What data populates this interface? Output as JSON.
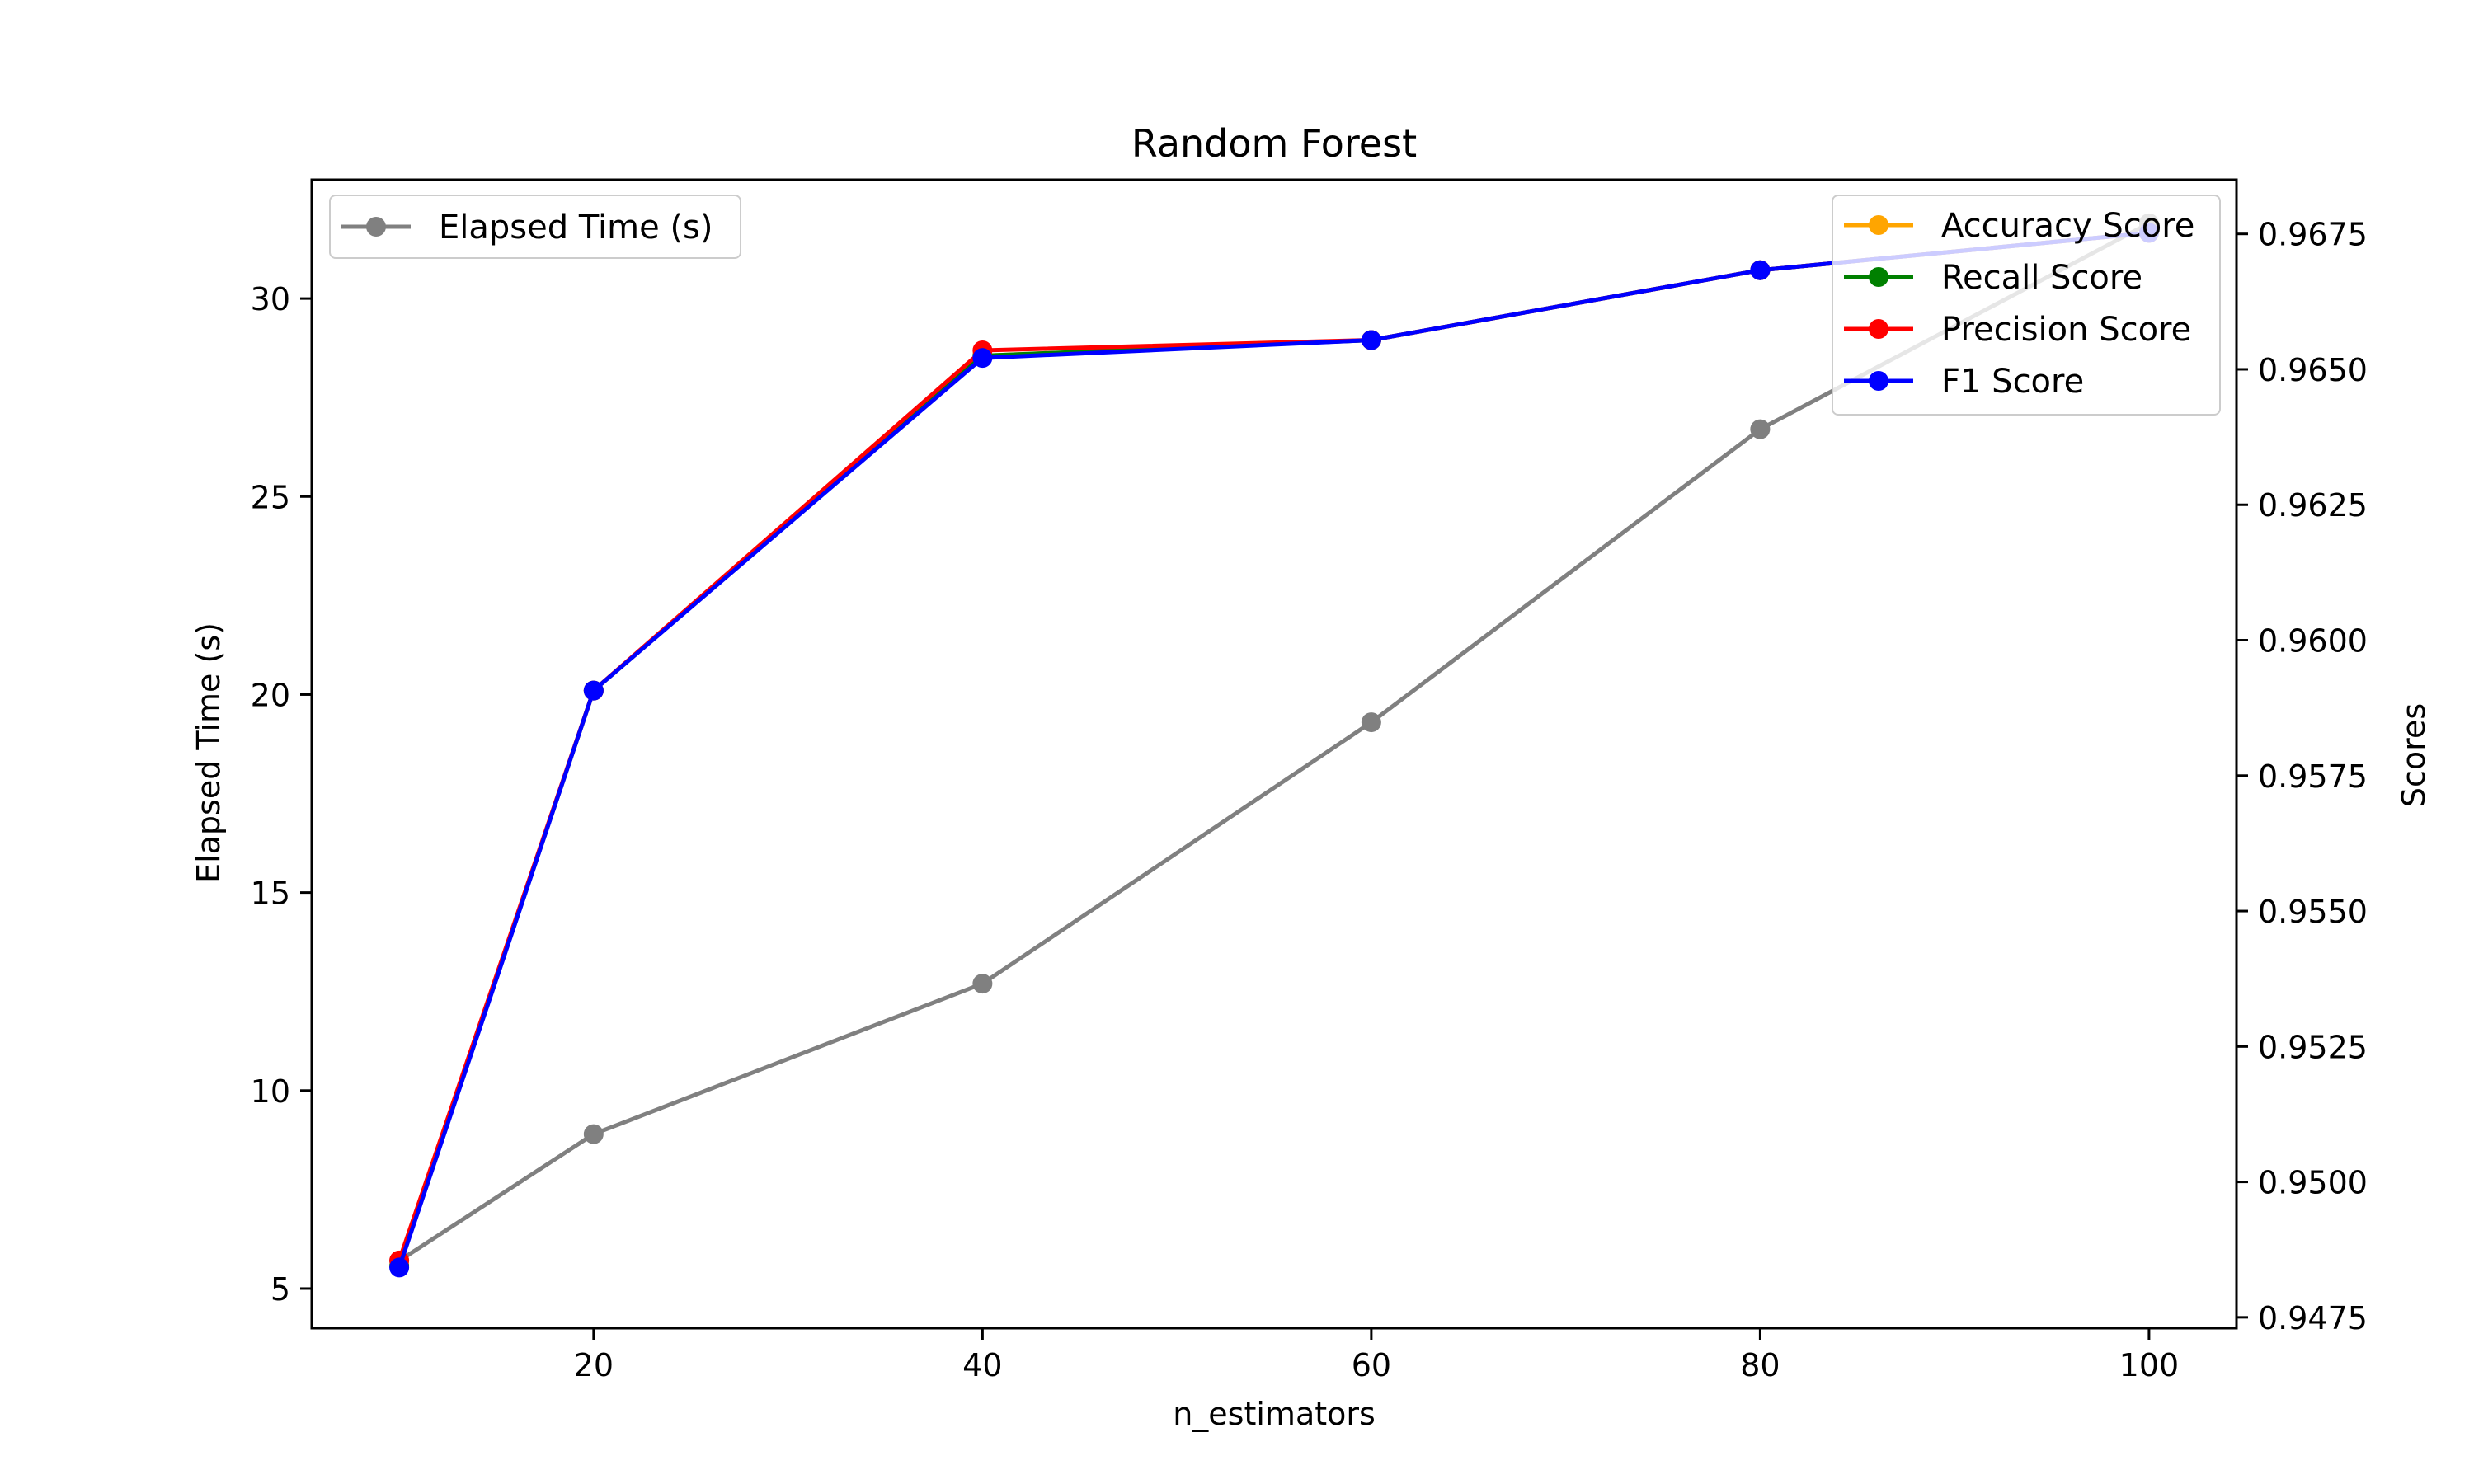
{
  "chart_data": {
    "type": "line",
    "title": "Random Forest",
    "xlabel": "n_estimators",
    "ylabel_left": "Elapsed Time (s)",
    "ylabel_right": "Scores",
    "x": [
      10,
      20,
      40,
      60,
      80,
      100
    ],
    "xlim": [
      5.5,
      104.5
    ],
    "x_ticks": [
      20,
      40,
      60,
      80,
      100
    ],
    "ylim_left": [
      4.0,
      33.0
    ],
    "y_ticks_left": [
      5,
      10,
      15,
      20,
      25,
      30
    ],
    "ylim_right": [
      0.9473,
      0.9685
    ],
    "y_ticks_right": [
      0.9475,
      0.95,
      0.9525,
      0.955,
      0.9575,
      0.96,
      0.9625,
      0.965,
      0.9675
    ],
    "y_tick_labels_right": [
      "0.9475",
      "0.9500",
      "0.9525",
      "0.9550",
      "0.9575",
      "0.9600",
      "0.9625",
      "0.9650",
      "0.9675"
    ],
    "left_series": [
      {
        "name": "Elapsed Time (s)",
        "color": "#808080",
        "values": [
          5.7,
          8.9,
          12.7,
          19.3,
          26.7,
          31.9
        ]
      }
    ],
    "right_series": [
      {
        "name": "Accuracy Score",
        "color": "#FFA500",
        "values": [
          0.94845,
          0.95907,
          0.96525,
          0.96554,
          0.96683,
          0.96752
        ]
      },
      {
        "name": "Recall Score",
        "color": "#008000",
        "values": [
          0.94845,
          0.95907,
          0.96525,
          0.96554,
          0.96683,
          0.96752
        ]
      },
      {
        "name": "Precision Score",
        "color": "#FF0000",
        "values": [
          0.94855,
          0.95907,
          0.96535,
          0.96554,
          0.96683,
          0.96752
        ]
      },
      {
        "name": "F1 Score",
        "color": "#0000FF",
        "values": [
          0.94842,
          0.95907,
          0.96521,
          0.96554,
          0.96683,
          0.96752
        ]
      }
    ],
    "legend_left_position": "upper left",
    "legend_right_position": "upper right",
    "grid": false
  }
}
